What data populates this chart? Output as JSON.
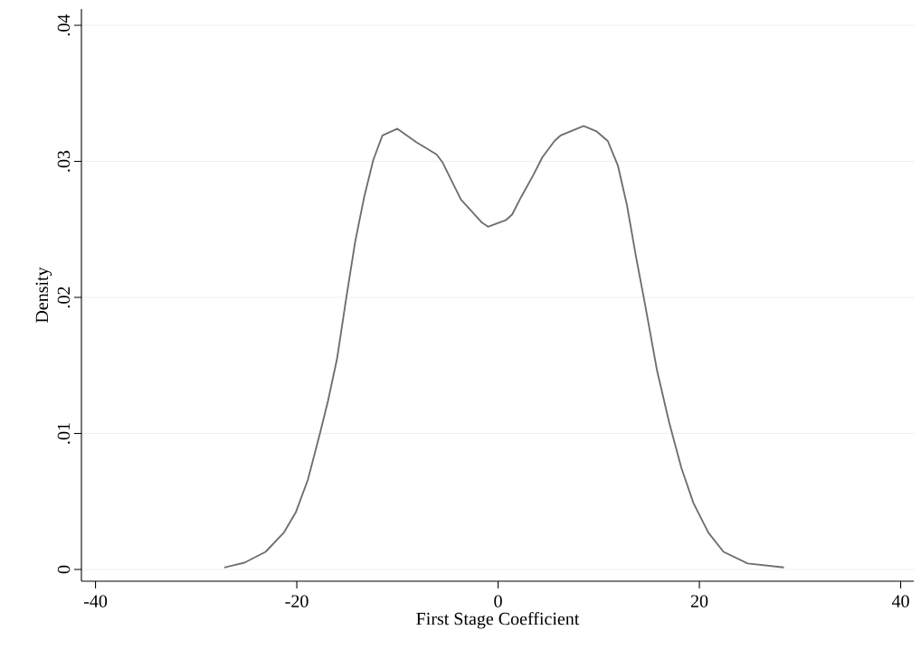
{
  "chart_data": {
    "type": "line",
    "xlabel": "First Stage Coefficient",
    "ylabel": "Density",
    "color": "#6e6e6e",
    "grid": "y",
    "x": [
      -27.2,
      -25.2,
      -23.1,
      -21.3,
      -20.1,
      -18.9,
      -17.7,
      -16.9,
      -16.0,
      -15.1,
      -14.2,
      -13.3,
      -12.4,
      -11.5,
      -10.0,
      -8.1,
      -7.2,
      -6.1,
      -5.5,
      -3.7,
      -1.6,
      -1.0,
      0.8,
      1.4,
      2.3,
      3.5,
      4.4,
      5.6,
      6.2,
      8.5,
      9.8,
      10.9,
      11.9,
      12.8,
      13.7,
      14.6,
      15.8,
      17.0,
      18.2,
      19.4,
      20.9,
      22.4,
      24.8,
      28.4
    ],
    "values": [
      0.00015,
      0.0005,
      0.0013,
      0.0027,
      0.0042,
      0.0066,
      0.01,
      0.0124,
      0.0155,
      0.0199,
      0.0241,
      0.0274,
      0.0301,
      0.0319,
      0.0324,
      0.0314,
      0.031,
      0.0305,
      0.0299,
      0.0272,
      0.0255,
      0.0252,
      0.0257,
      0.0261,
      0.0274,
      0.029,
      0.0303,
      0.0315,
      0.0319,
      0.0326,
      0.0322,
      0.0315,
      0.0297,
      0.0268,
      0.023,
      0.0195,
      0.0146,
      0.0108,
      0.0075,
      0.0049,
      0.0027,
      0.0013,
      0.00044,
      0.00015
    ],
    "xlim": [
      -41.4,
      41.3
    ],
    "ylim": [
      -0.00086,
      0.0412
    ],
    "xticks": [
      -40,
      -20,
      0,
      20,
      40
    ],
    "yticks": [
      0,
      {
        "value": 0.01,
        "label": ".01"
      },
      {
        "value": 0.02,
        "label": ".02"
      },
      {
        "value": 0.03,
        "label": ".03"
      },
      {
        "value": 0.04,
        "label": ".04"
      }
    ]
  }
}
